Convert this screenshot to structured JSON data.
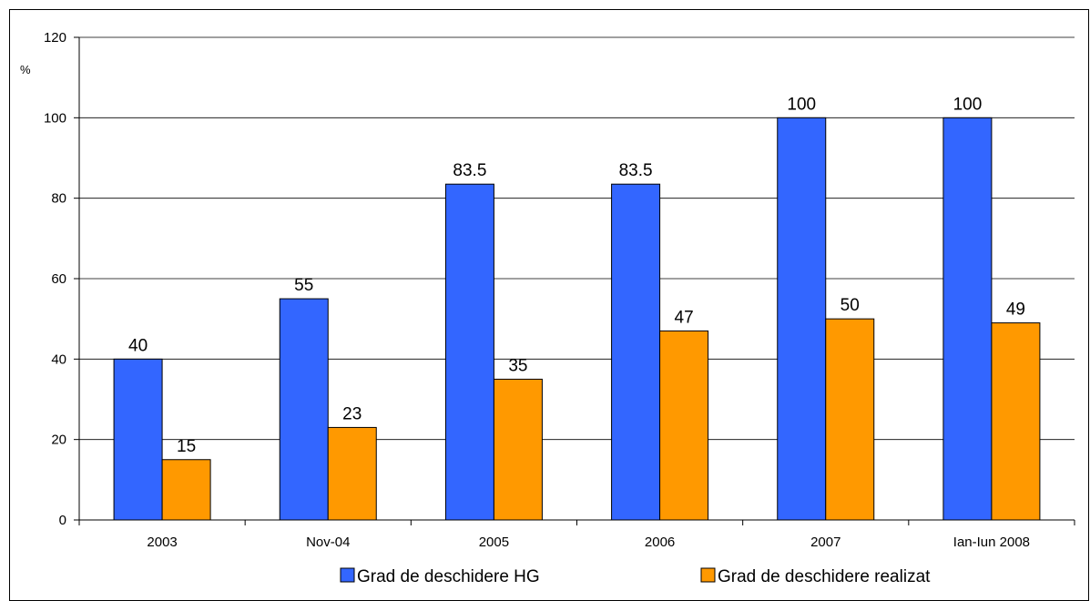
{
  "chart_data": {
    "type": "bar",
    "title": "",
    "xlabel": "",
    "ylabel": "%",
    "ylim": [
      0,
      120
    ],
    "yticks": [
      0,
      20,
      40,
      60,
      80,
      100,
      120
    ],
    "grid": true,
    "legend_position": "bottom",
    "categories": [
      "2003",
      "Nov-04",
      "2005",
      "2006",
      "2007",
      "Ian-Iun 2008"
    ],
    "series": [
      {
        "name": "Grad de deschidere HG",
        "color": "#3366ff",
        "values": [
          40,
          55,
          83.5,
          83.5,
          100,
          100
        ]
      },
      {
        "name": "Grad de deschidere realizat",
        "color": "#ff9900",
        "values": [
          15,
          23,
          35,
          47,
          50,
          49
        ]
      }
    ]
  }
}
